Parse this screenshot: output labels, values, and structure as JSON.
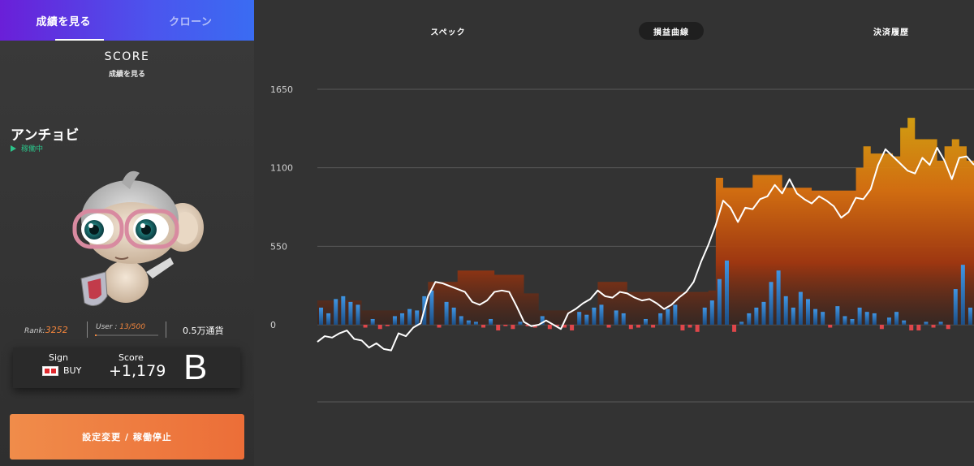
{
  "left": {
    "tabs": [
      {
        "label": "成績を見る",
        "active": true
      },
      {
        "label": "クローン",
        "active": false
      }
    ],
    "score_title": "SCORE",
    "score_subtitle": "成績を見る",
    "bot_name": "アンチョビ",
    "bot_status": "稼働中",
    "rank_label": "Rank:",
    "rank_value": "3252",
    "users_label": "User : ",
    "users_value": "13/500",
    "users_progress": 0.026,
    "currency": "0.5万通貨",
    "sign_label": "Sign",
    "sign_value": "BUY",
    "score_label": "Score",
    "score_value": "+1,179",
    "grade": "B",
    "action_button": "設定変更 / 稼働停止"
  },
  "right": {
    "tabs": [
      {
        "label": "スペック",
        "active": false
      },
      {
        "label": "損益曲線",
        "active": true
      },
      {
        "label": "決済履歴",
        "active": false
      }
    ]
  },
  "colors": {
    "accent_orange": "#f0843c",
    "status_green": "#2bc48a",
    "bar_blue": "#3a86d8",
    "bar_red": "#e0464a",
    "area_orange": "#d9820f",
    "area_dark": "#7a2e12"
  },
  "chart_data": {
    "type": "area",
    "y_ticks": [
      1650,
      1100,
      550,
      0
    ],
    "ylim": [
      -550,
      1650
    ],
    "series": [
      {
        "kind": "line",
        "values": [
          -120,
          -80,
          -90,
          -60,
          -40,
          -100,
          -110,
          -160,
          -130,
          -170,
          -180,
          -60,
          -80,
          -20,
          10,
          200,
          300,
          290,
          270,
          250,
          230,
          160,
          140,
          170,
          230,
          240,
          230,
          130,
          20,
          -10,
          0,
          30,
          0,
          -30,
          80,
          110,
          150,
          180,
          240,
          200,
          190,
          230,
          220,
          190,
          170,
          180,
          150,
          110,
          140,
          190,
          230,
          300,
          440,
          560,
          700,
          870,
          820,
          720,
          820,
          810,
          880,
          900,
          980,
          920,
          1020,
          920,
          880,
          850,
          900,
          870,
          830,
          750,
          790,
          890,
          880,
          950,
          1120,
          1230,
          1180,
          1130,
          1080,
          1060,
          1170,
          1120,
          1240,
          1150,
          1020,
          1170,
          1180,
          1120
        ],
        "color": "#ffffff"
      },
      {
        "kind": "max_area",
        "values": [
          170,
          170,
          170,
          170,
          170,
          170,
          100,
          100,
          100,
          100,
          100,
          100,
          100,
          100,
          100,
          300,
          300,
          300,
          300,
          380,
          380,
          380,
          380,
          380,
          350,
          350,
          350,
          350,
          220,
          220,
          100,
          100,
          100,
          100,
          100,
          100,
          100,
          100,
          300,
          300,
          300,
          300,
          230,
          230,
          230,
          230,
          230,
          230,
          230,
          230,
          230,
          230,
          230,
          240,
          1030,
          960,
          960,
          960,
          960,
          1050,
          1050,
          1050,
          1050,
          960,
          960,
          960,
          960,
          940,
          940,
          940,
          940,
          940,
          940,
          1100,
          1250,
          1200,
          1200,
          1200,
          1180,
          1380,
          1450,
          1300,
          1300,
          1300,
          1150,
          1250,
          1300,
          1250,
          1150,
          1150
        ]
      }
    ],
    "bars": [
      120,
      80,
      180,
      200,
      160,
      140,
      -20,
      40,
      -30,
      -10,
      60,
      80,
      110,
      100,
      200,
      240,
      -20,
      160,
      120,
      60,
      30,
      20,
      -20,
      40,
      -40,
      -10,
      -30,
      20,
      -10,
      -20,
      60,
      -30,
      -10,
      -20,
      -40,
      90,
      70,
      120,
      140,
      -20,
      100,
      80,
      -30,
      -20,
      40,
      -20,
      80,
      110,
      140,
      -40,
      -20,
      -50,
      120,
      170,
      320,
      450,
      -50,
      20,
      80,
      120,
      160,
      300,
      380,
      200,
      120,
      230,
      180,
      110,
      90,
      -20,
      130,
      60,
      40,
      120,
      90,
      80,
      -30,
      50,
      90,
      30,
      -40,
      -40,
      20,
      -20,
      20,
      -30,
      250,
      420,
      120,
      -30
    ]
  }
}
